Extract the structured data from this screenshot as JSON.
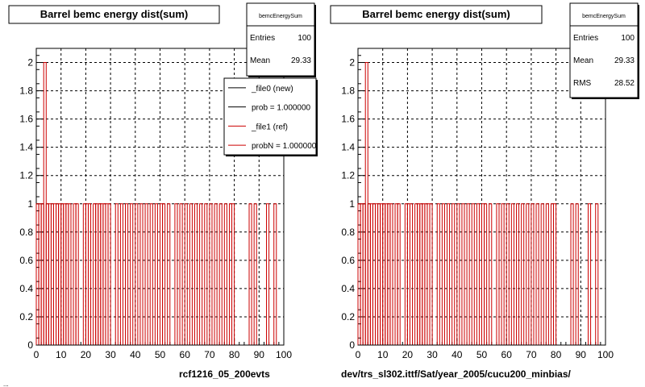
{
  "canvas_left_label": "rcf1216_05_200evts",
  "canvas_right_label": "dev/trs_sl302.ittf/Sat/year_2005/cucu200_minbias/",
  "footer_clip": "...",
  "chart_data": [
    {
      "type": "bar",
      "title": "Barrel bemc energy dist(sum)",
      "xlabel": "",
      "ylabel": "",
      "xlim": [
        0,
        100
      ],
      "ylim": [
        0,
        2.1
      ],
      "grid": true,
      "x_ticks": [
        "0",
        "10",
        "20",
        "30",
        "40",
        "50",
        "60",
        "70",
        "80",
        "90",
        "100"
      ],
      "y_ticks": [
        "0",
        "0.2",
        "0.4",
        "0.6",
        "0.8",
        "1",
        "1.2",
        "1.4",
        "1.6",
        "1.8",
        "2"
      ],
      "stats": {
        "name": "bemcEnergySum",
        "rows": [
          {
            "label": "Entries",
            "value": "100"
          },
          {
            "label": "Mean",
            "value": "29.33"
          }
        ]
      },
      "legend": {
        "placement": "top-right",
        "entries": [
          {
            "label": "_file0 (new)",
            "color": "#000000"
          },
          {
            "label": "prob = 1.000000",
            "color": "#000000"
          },
          {
            "label": "_file1 (ref)",
            "color": "#cc0000"
          },
          {
            "label": "probN = 1.000000",
            "color": "#cc0000"
          }
        ]
      },
      "series": [
        {
          "color": "#cc0000",
          "x": [
            0.5,
            1.5,
            2.5,
            3.5,
            4.5,
            5.5,
            6.5,
            7.5,
            8.5,
            9.5,
            10.5,
            11.5,
            12.5,
            13.5,
            15.5,
            16.5,
            19.5,
            20.5,
            21.5,
            23.5,
            24.5,
            25.5,
            26.5,
            27.5,
            28.5,
            29.5,
            32.5,
            34.5,
            36.5,
            38.5,
            40.5,
            42.5,
            44.5,
            46.5,
            48.5,
            50.5,
            51.5,
            53.5,
            56.5,
            58.5,
            60.5,
            62.5,
            64.5,
            66.5,
            68.5,
            70.5,
            72.5,
            74.5,
            76.5,
            78.5,
            79.5,
            86.5,
            88.5,
            93.5,
            96.5
          ],
          "values": [
            1,
            1,
            1,
            2,
            1,
            1,
            1,
            1,
            1,
            1,
            1,
            1,
            1,
            1,
            1,
            1,
            1,
            1,
            1,
            1,
            1,
            1,
            1,
            1,
            1,
            1,
            1,
            1,
            1,
            1,
            1,
            1,
            1,
            1,
            1,
            1,
            1,
            1,
            1,
            1,
            1,
            1,
            1,
            1,
            1,
            1,
            1,
            1,
            1,
            1,
            1,
            1,
            1,
            1,
            1
          ]
        }
      ]
    },
    {
      "type": "bar",
      "title": "Barrel bemc energy dist(sum)",
      "xlabel": "",
      "ylabel": "",
      "xlim": [
        0,
        100
      ],
      "ylim": [
        0,
        2.1
      ],
      "grid": true,
      "x_ticks": [
        "0",
        "10",
        "20",
        "30",
        "40",
        "50",
        "60",
        "70",
        "80",
        "90",
        "100"
      ],
      "y_ticks": [
        "0",
        "0.2",
        "0.4",
        "0.6",
        "0.8",
        "1",
        "1.2",
        "1.4",
        "1.6",
        "1.8",
        "2"
      ],
      "stats": {
        "name": "bemcEnergySum",
        "rows": [
          {
            "label": "Entries",
            "value": "100"
          },
          {
            "label": "Mean",
            "value": "29.33"
          },
          {
            "label": "RMS",
            "value": "28.52"
          }
        ]
      },
      "series": [
        {
          "color": "#cc0000",
          "x": [
            0.5,
            1.5,
            2.5,
            3.5,
            4.5,
            5.5,
            6.5,
            7.5,
            8.5,
            9.5,
            10.5,
            11.5,
            12.5,
            13.5,
            15.5,
            16.5,
            19.5,
            20.5,
            21.5,
            23.5,
            24.5,
            25.5,
            26.5,
            27.5,
            28.5,
            29.5,
            32.5,
            34.5,
            36.5,
            38.5,
            40.5,
            42.5,
            44.5,
            46.5,
            48.5,
            50.5,
            51.5,
            53.5,
            56.5,
            58.5,
            60.5,
            62.5,
            64.5,
            66.5,
            68.5,
            70.5,
            72.5,
            74.5,
            76.5,
            78.5,
            79.5,
            86.5,
            88.5,
            93.5,
            96.5
          ],
          "values": [
            1,
            1,
            1,
            2,
            1,
            1,
            1,
            1,
            1,
            1,
            1,
            1,
            1,
            1,
            1,
            1,
            1,
            1,
            1,
            1,
            1,
            1,
            1,
            1,
            1,
            1,
            1,
            1,
            1,
            1,
            1,
            1,
            1,
            1,
            1,
            1,
            1,
            1,
            1,
            1,
            1,
            1,
            1,
            1,
            1,
            1,
            1,
            1,
            1,
            1,
            1,
            1,
            1,
            1,
            1
          ]
        }
      ]
    }
  ]
}
